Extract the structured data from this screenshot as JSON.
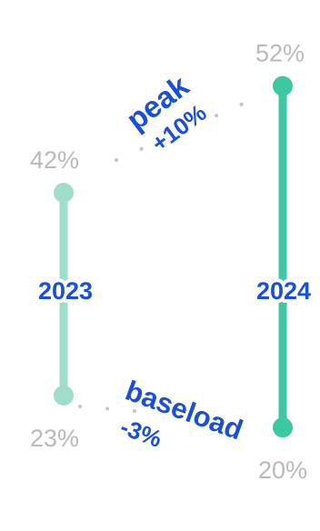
{
  "chart_data": {
    "type": "range",
    "title": "",
    "unit": "%",
    "series": [
      {
        "name": "2023",
        "low": 23,
        "high": 42,
        "low_label": "23%",
        "high_label": "42%",
        "color": "#9edccb"
      },
      {
        "name": "2024",
        "low": 20,
        "high": 52,
        "low_label": "20%",
        "high_label": "52%",
        "color": "#3cc8a0"
      }
    ],
    "annotations": {
      "peak": {
        "label": "peak",
        "change": "+10%"
      },
      "baseload": {
        "label": "baseload",
        "change": "-3%"
      }
    },
    "colors": {
      "annotation": "#1a4fd8",
      "value_label": "#b9b9b9",
      "connector": "#c4c4c4"
    }
  }
}
